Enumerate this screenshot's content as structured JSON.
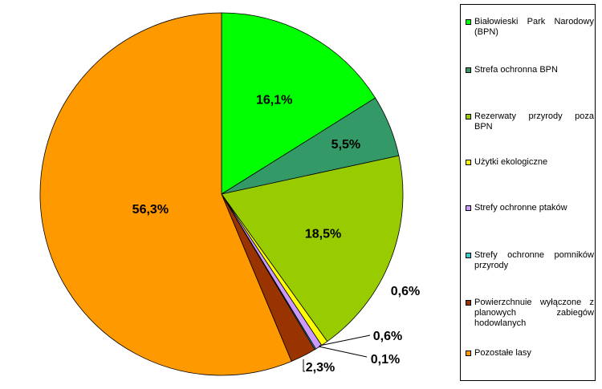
{
  "chart_data": {
    "type": "pie",
    "slices": [
      {
        "label": "Białowieski Park Narodowy (BPN)",
        "value": 16.1,
        "display": "16,1%",
        "color": "#00ff00"
      },
      {
        "label": "Strefa ochronna BPN",
        "value": 5.5,
        "display": "5,5%",
        "color": "#339966"
      },
      {
        "label": "Rezerwaty przyrody  poza BPN",
        "value": 18.5,
        "display": "18,5%",
        "color": "#99cc00"
      },
      {
        "label": "Użytki ekologiczne",
        "value": 0.6,
        "display": "0,6%",
        "color": "#ffff00"
      },
      {
        "label": "Strefy ochronne ptaków",
        "value": 0.6,
        "display": "0,6%",
        "color": "#cc99ff"
      },
      {
        "label": "Strefy ochronne pomników przyrody",
        "value": 0.1,
        "display": "0,1%",
        "color": "#33cccc"
      },
      {
        "label": "Powierzchnuie wyłączone z planowych zabiegów hodowlanych",
        "value": 2.3,
        "display": "2,3%",
        "color": "#993300"
      },
      {
        "label": "Pozostałe lasy",
        "value": 56.3,
        "display": "56,3%",
        "color": "#ff9900"
      }
    ],
    "start_angle_deg": 0,
    "direction": "clockwise",
    "legend_position": "right"
  }
}
